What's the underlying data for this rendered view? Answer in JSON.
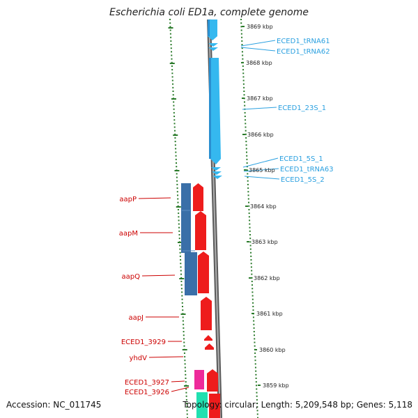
{
  "title": "Escherichia coli ED1a, complete genome",
  "footer": {
    "accession": "Accession: NC_011745",
    "summary": "Topology: circular; Length: 5,209,548 bp; Genes: 5,118"
  },
  "colors": {
    "rna": "#35b8ef",
    "rna_label": "#2aa0e0",
    "gene_red": "#ee1c1c",
    "gene_label": "#cc0000",
    "operon_blue": "#3a6fa8",
    "magenta": "#ee2a9a",
    "teal": "#20e0b0",
    "axis_gray": "#8a8a8a",
    "tick_green": "#2a7a2a"
  },
  "ruler": [
    {
      "label": "3869 kbp"
    },
    {
      "label": "3868 kbp"
    },
    {
      "label": "3867 kbp"
    },
    {
      "label": "3866 kbp"
    },
    {
      "label": "3865 kbp"
    },
    {
      "label": "3864 kbp"
    },
    {
      "label": "3863 kbp"
    },
    {
      "label": "3862 kbp"
    },
    {
      "label": "3861 kbp"
    },
    {
      "label": "3860 kbp"
    },
    {
      "label": "3859 kbp"
    }
  ],
  "rna_labels": [
    "ECED1_tRNA61",
    "ECED1_tRNA62",
    "ECED1_23S_1",
    "ECED1_5S_1",
    "ECED1_tRNA63",
    "ECED1_5S_2"
  ],
  "gene_labels": [
    "aapP",
    "aapM",
    "aapQ",
    "aapJ",
    "ECED1_3929",
    "yhdV",
    "ECED1_3927",
    "ECED1_3926"
  ]
}
